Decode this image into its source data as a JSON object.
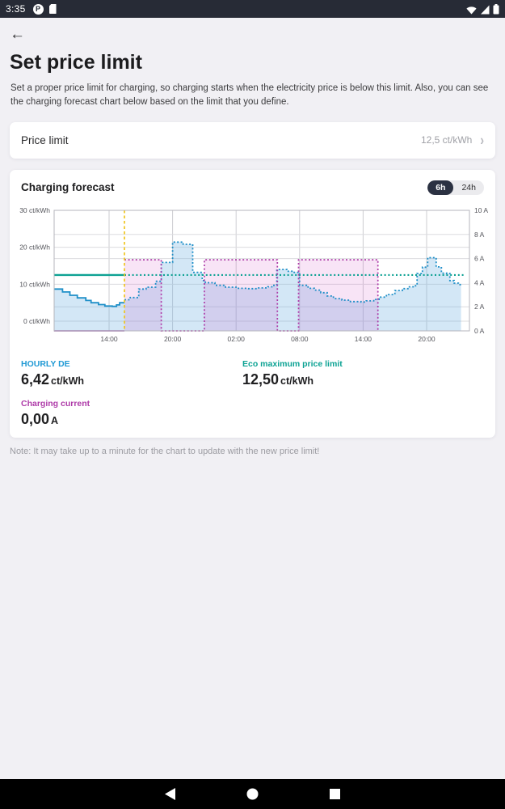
{
  "status_bar": {
    "time": "3:35",
    "left_icons": [
      "p-circle-icon",
      "sd-card-icon"
    ],
    "right_icons": [
      "wifi-icon",
      "cell-signal-icon",
      "battery-icon"
    ]
  },
  "header": {
    "back_icon": "arrow-left",
    "title": "Set price limit",
    "description": "Set a proper price limit for charging, so charging starts when the electricity price is below this limit. Also, you can see the charging forecast chart below based on the limit that you define."
  },
  "price_limit_row": {
    "label": "Price limit",
    "value": "12,5 ct/kWh",
    "chevron": "›"
  },
  "forecast_card": {
    "title": "Charging forecast",
    "range_toggle": {
      "options": [
        "6h",
        "24h"
      ],
      "selected": "6h"
    },
    "legend": [
      {
        "label": "HOURLY DE",
        "value": "6,42",
        "unit": "ct/kWh",
        "color": "#1f99d4"
      },
      {
        "label": "Eco maximum price limit",
        "value": "12,50",
        "unit": "ct/kWh",
        "color": "#0ba293"
      },
      {
        "label": "Charging current",
        "value": "0,00",
        "unit": "A",
        "color": "#ae3ba8"
      }
    ]
  },
  "note": "Note: It may take up to a minute for the chart to update with the new price limit!",
  "nav_bar": {
    "buttons": [
      "back",
      "home",
      "recents"
    ]
  },
  "chart_data": {
    "type": "line",
    "subtype": "stepped-forecast",
    "title": "Charging forecast",
    "x_axis": {
      "unit": "time-of-day",
      "start_hour": 8.8,
      "end_hour": 48.05,
      "ticks": [
        {
          "t": 14,
          "label": "14:00"
        },
        {
          "t": 20,
          "label": "20:00"
        },
        {
          "t": 26,
          "label": "02:00"
        },
        {
          "t": 32,
          "label": "08:00"
        },
        {
          "t": 38,
          "label": "14:00"
        },
        {
          "t": 44,
          "label": "20:00"
        }
      ]
    },
    "left_axis": {
      "unit": "ct/kWh",
      "range": [
        0,
        30
      ],
      "ticks": [
        {
          "v": 30,
          "label": "30 ct/kWh"
        },
        {
          "v": 20,
          "label": "20 ct/kWh"
        },
        {
          "v": 10,
          "label": "10 ct/kWh"
        },
        {
          "v": 0,
          "label": "0 ct/kWh"
        }
      ],
      "grid_values": [
        20,
        10,
        0
      ]
    },
    "right_axis": {
      "unit": "A",
      "range": [
        0,
        10
      ],
      "ticks": [
        {
          "v": 10,
          "label": "10 A"
        },
        {
          "v": 8,
          "label": "8 A"
        },
        {
          "v": 6,
          "label": "6 A"
        },
        {
          "v": 4,
          "label": "4 A"
        },
        {
          "v": 2,
          "label": "2 A"
        },
        {
          "v": 0,
          "label": "0 A"
        }
      ],
      "grid_values": [
        8,
        6,
        2
      ]
    },
    "now_hour": 15.45,
    "now_line_color": "#f0c51e",
    "grid_color_v": "#cdcdd2",
    "grid_color_h": "#dcdcdf",
    "border_color": "#b6b6bc",
    "label_color": "#55565c",
    "series": {
      "hourly_price": {
        "name": "HOURLY DE",
        "axis": "left",
        "unit": "ct/kWh",
        "color": "#1e8fc8",
        "fill": "rgba(110,175,225,0.30)",
        "current_value": 6.42,
        "past_steps": [
          [
            8.8,
            8.7
          ],
          [
            9.6,
            7.9
          ],
          [
            10.3,
            7.0
          ],
          [
            11,
            6.3
          ],
          [
            11.8,
            5.6
          ],
          [
            12.3,
            5.0
          ],
          [
            13,
            4.5
          ],
          [
            13.6,
            4.1
          ],
          [
            14.3,
            4.0
          ],
          [
            14.7,
            4.4
          ],
          [
            15.0,
            5.0
          ]
        ],
        "forecast_steps": [
          [
            15.45,
            5.8
          ],
          [
            16,
            6.4
          ],
          [
            16.8,
            8.7
          ],
          [
            17.5,
            9.2
          ],
          [
            18.4,
            10.8
          ],
          [
            18.93,
            15.9
          ],
          [
            20,
            21.4
          ],
          [
            21,
            20.8
          ],
          [
            21.9,
            13.2
          ],
          [
            22.8,
            11.0
          ],
          [
            23.1,
            10.4
          ],
          [
            24,
            9.7
          ],
          [
            25,
            9.2
          ],
          [
            26,
            8.9
          ],
          [
            27,
            8.8
          ],
          [
            28,
            9.0
          ],
          [
            29,
            9.3
          ],
          [
            29.5,
            9.7
          ],
          [
            29.85,
            14.0
          ],
          [
            30.8,
            13.5
          ],
          [
            31.4,
            13.2
          ],
          [
            32,
            9.7
          ],
          [
            32.8,
            8.9
          ],
          [
            33.4,
            8.4
          ],
          [
            34,
            7.7
          ],
          [
            34.6,
            6.8
          ],
          [
            35.2,
            6.1
          ],
          [
            36,
            5.7
          ],
          [
            36.8,
            5.3
          ],
          [
            37.8,
            5.2
          ],
          [
            38.3,
            5.5
          ],
          [
            39,
            5.9
          ],
          [
            39.5,
            6.5
          ],
          [
            40.2,
            7.2
          ],
          [
            41,
            8.3
          ],
          [
            41.7,
            8.8
          ],
          [
            42.3,
            9.3
          ],
          [
            42.8,
            9.6
          ],
          [
            43.1,
            12.9
          ],
          [
            43.6,
            14.6
          ],
          [
            44.1,
            17.2
          ],
          [
            44.9,
            14.7
          ],
          [
            45.4,
            13.0
          ],
          [
            45.9,
            12.9
          ],
          [
            46.2,
            11.0
          ],
          [
            46.6,
            10.3
          ],
          [
            47.0,
            9.9
          ]
        ],
        "end_hour": 47.25
      },
      "eco_limit": {
        "name": "Eco maximum price limit",
        "axis": "left",
        "unit": "ct/kWh",
        "color": "#0fa294",
        "value": 12.5,
        "end_hour": 47.6
      },
      "charging_current": {
        "name": "Charging current",
        "axis": "right",
        "unit": "A",
        "color": "#ad3ba7",
        "fill": "rgba(205,75,195,0.15)",
        "current_value": 0,
        "past_steps": [
          [
            8.8,
            0
          ]
        ],
        "forecast_steps": [
          [
            15.45,
            5.9
          ],
          [
            18.93,
            0
          ],
          [
            23,
            5.9
          ],
          [
            29.9,
            0
          ],
          [
            31.9,
            5.9
          ],
          [
            39.4,
            0
          ]
        ],
        "end_hour": 39.4
      }
    }
  }
}
